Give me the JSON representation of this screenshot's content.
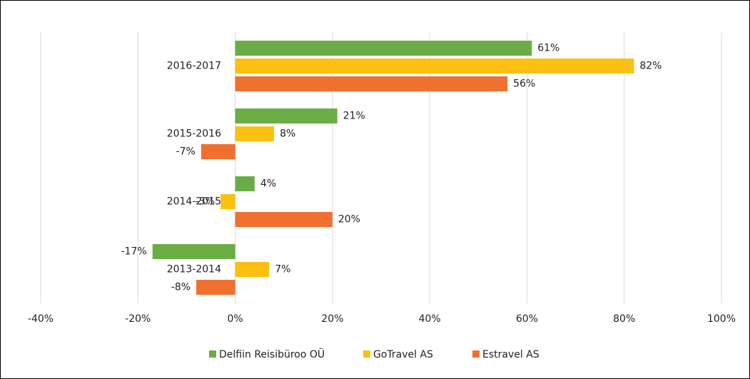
{
  "chart_data": {
    "type": "hbar",
    "categories": [
      "2016-2017",
      "2015-2016",
      "2014-2015",
      "2013-2014"
    ],
    "series": [
      {
        "name": "Delfiin Reisibüroo OÜ",
        "color": "#6aad45",
        "values": [
          61,
          21,
          4,
          -17
        ],
        "value_labels": [
          "61%",
          "21%",
          "4%",
          "-17%"
        ]
      },
      {
        "name": "GoTravel AS",
        "color": "#fcc010",
        "values": [
          82,
          8,
          -3,
          7
        ],
        "value_labels": [
          "82%",
          "8%",
          "-3%",
          "7%"
        ]
      },
      {
        "name": "Estravel AS",
        "color": "#f07030",
        "values": [
          56,
          -7,
          20,
          -8
        ],
        "value_labels": [
          "56%",
          "-7%",
          "20%",
          "-8%"
        ]
      }
    ],
    "xlim": [
      -40,
      100
    ],
    "xticks": [
      {
        "value": -40,
        "label": "-40%"
      },
      {
        "value": -20,
        "label": "-20%"
      },
      {
        "value": 0,
        "label": "0%"
      },
      {
        "value": 20,
        "label": "20%"
      },
      {
        "value": 40,
        "label": "40%"
      },
      {
        "value": 60,
        "label": "60%"
      },
      {
        "value": 80,
        "label": "80%"
      },
      {
        "value": 100,
        "label": "100%"
      }
    ],
    "grid": true,
    "legend": "bottom"
  }
}
